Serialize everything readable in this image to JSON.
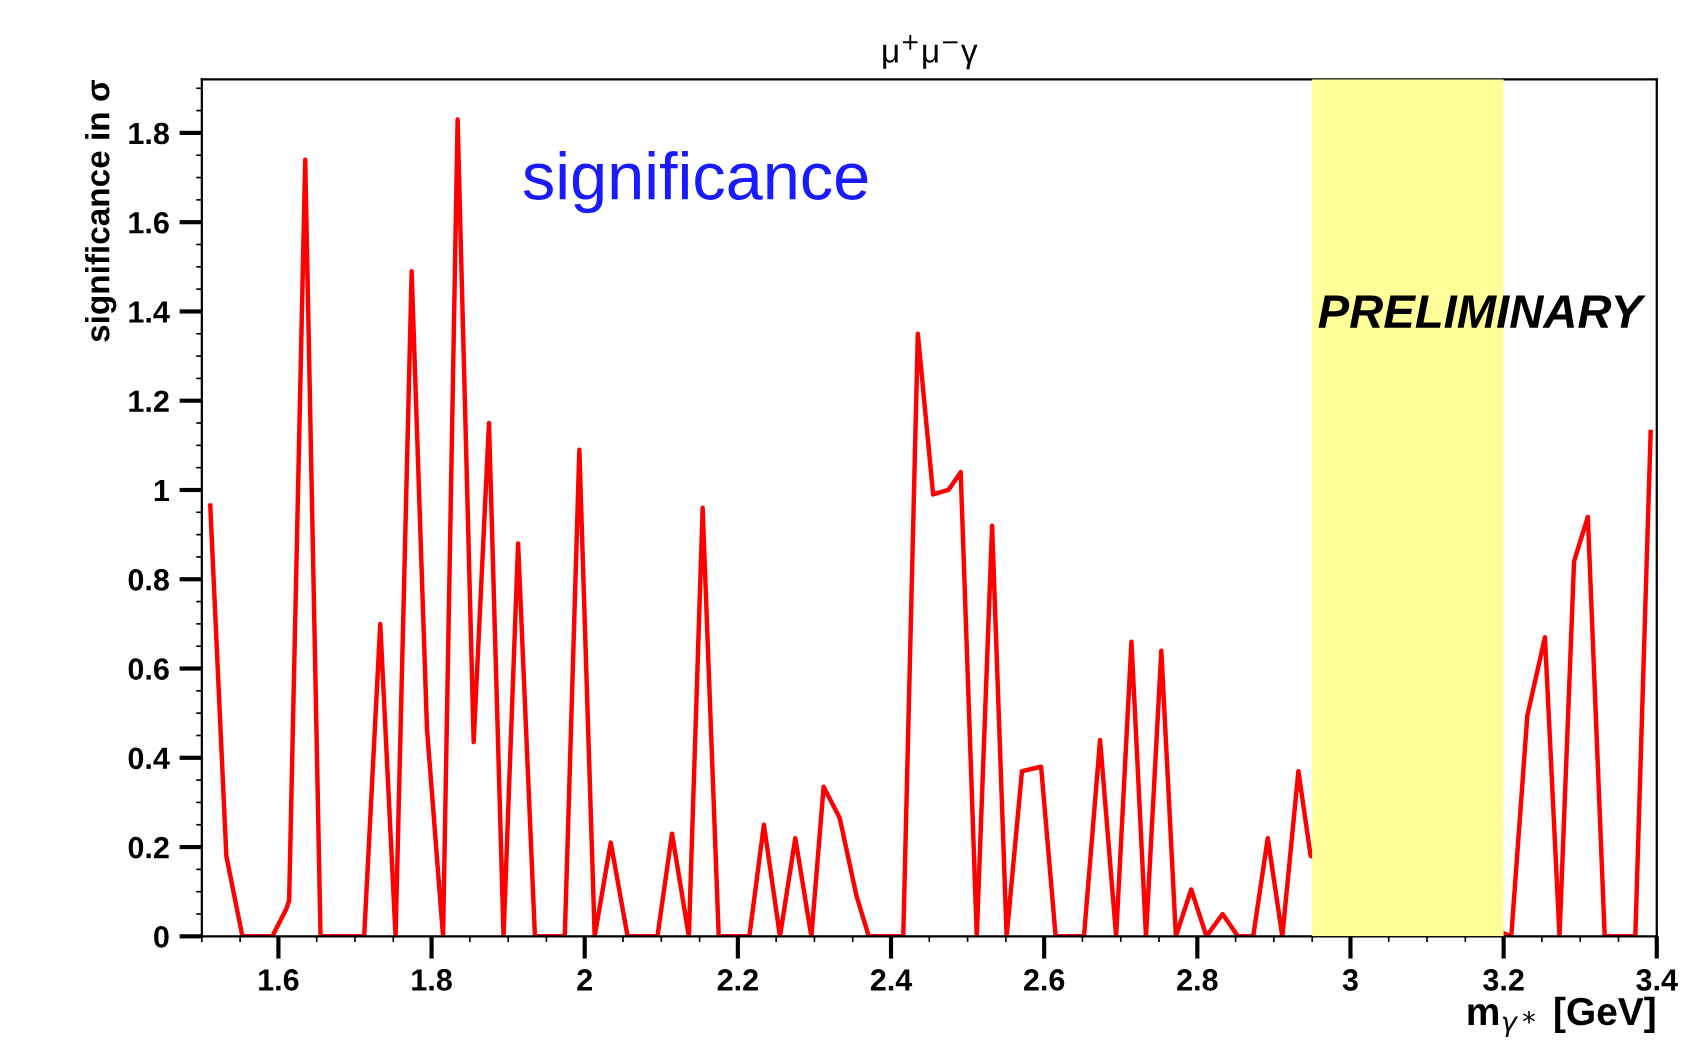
{
  "chart_data": {
    "type": "line",
    "title": "μ$^{+}$μ$^{−}$γ",
    "xlabel": "m$_{γ*}$ [GeV]",
    "ylabel": "significance in σ",
    "annotations": [
      "significance",
      "PRELIMINARY"
    ],
    "x": [
      1.511,
      1.532,
      1.553,
      1.592,
      1.61,
      1.614,
      1.635,
      1.655,
      1.712,
      1.733,
      1.753,
      1.774,
      1.794,
      1.815,
      1.834,
      1.855,
      1.875,
      1.894,
      1.913,
      1.935,
      1.974,
      1.993,
      2.013,
      2.034,
      2.056,
      2.095,
      2.114,
      2.136,
      2.154,
      2.175,
      2.215,
      2.234,
      2.255,
      2.275,
      2.296,
      2.312,
      2.333,
      2.355,
      2.371,
      2.416,
      2.435,
      2.455,
      2.475,
      2.491,
      2.512,
      2.532,
      2.551,
      2.571,
      2.596,
      2.615,
      2.652,
      2.673,
      2.694,
      2.714,
      2.733,
      2.753,
      2.772,
      2.792,
      2.812,
      2.833,
      2.853,
      2.873,
      2.892,
      2.911,
      2.932,
      2.948,
      3.21,
      3.231,
      3.254,
      3.273,
      3.292,
      3.31,
      3.332,
      3.372,
      3.392
    ],
    "series": [
      {
        "color": "#ff0000",
        "values": [
          0.965,
          0.18,
          0,
          0,
          0.06,
          0.08,
          1.74,
          0,
          0,
          0.7,
          0,
          1.49,
          0.465,
          0,
          1.83,
          0.435,
          1.15,
          0,
          0.88,
          0,
          0,
          1.09,
          0,
          0.21,
          0,
          0,
          0.23,
          0,
          0.96,
          0,
          0,
          0.25,
          0,
          0.22,
          0,
          0.335,
          0.265,
          0.09,
          0,
          0,
          1.35,
          0.99,
          1.0,
          1.04,
          0,
          0.92,
          0,
          0.37,
          0.38,
          0,
          0,
          0.44,
          0,
          0.66,
          0,
          0.64,
          0,
          0.105,
          0,
          0.05,
          0,
          0,
          0.22,
          0,
          0.37,
          0.18,
          0,
          0.495,
          0.67,
          0,
          0.84,
          0.94,
          0,
          0,
          1.13
        ]
      }
    ],
    "bands": [
      {
        "axis": "x",
        "from": 2.95,
        "to": 3.2,
        "color": "#ffff99"
      }
    ],
    "xlim": [
      1.5,
      3.4
    ],
    "ylim": [
      0,
      1.92
    ],
    "xticks": [
      1.6,
      1.8,
      2,
      2.2,
      2.4,
      2.6,
      2.8,
      3,
      3.2,
      3.4
    ],
    "yticks": [
      0,
      0.2,
      0.4,
      0.6,
      0.8,
      1,
      1.2,
      1.4,
      1.6,
      1.8
    ],
    "grid": false,
    "legend": false,
    "marker": "none",
    "line_style": "solid"
  }
}
